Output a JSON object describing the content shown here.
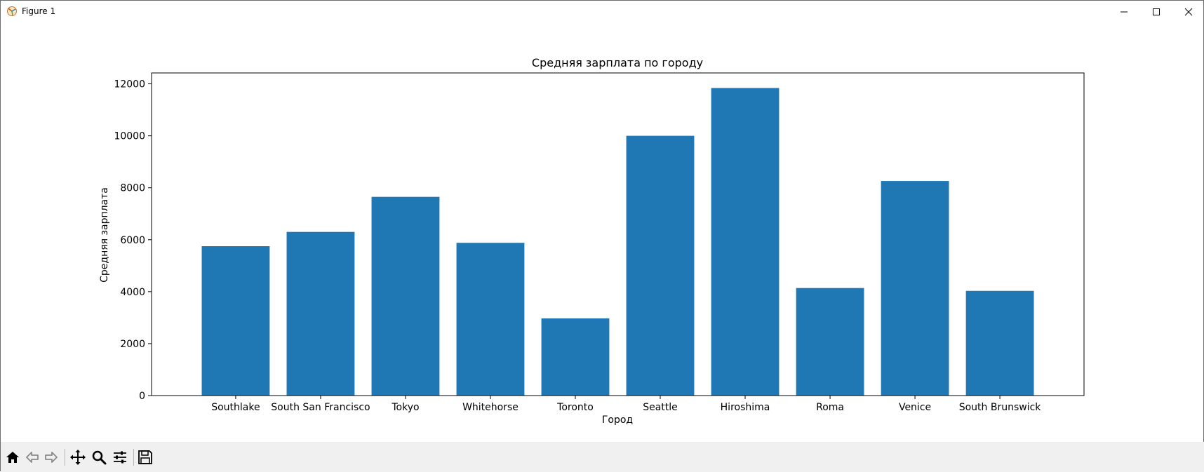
{
  "window": {
    "title": "Figure 1",
    "app_icon": "matplotlib-icon",
    "controls": [
      "minimize-icon",
      "maximize-icon",
      "close-icon"
    ]
  },
  "toolbar": {
    "buttons": [
      "home-icon",
      "back-icon",
      "forward-icon",
      "pan-icon",
      "zoom-icon",
      "configure-subplots-icon",
      "save-icon"
    ]
  },
  "chart_data": {
    "type": "bar",
    "title": "Средняя зарплата по городу",
    "xlabel": "Город",
    "ylabel": "Средняя зарплата",
    "categories": [
      "Southlake",
      "South San Francisco",
      "Tokyo",
      "Whitehorse",
      "Toronto",
      "Seattle",
      "Hiroshima",
      "Roma",
      "Venice",
      "South Brunswick"
    ],
    "values": [
      5750,
      6300,
      7650,
      5880,
      2970,
      10000,
      11840,
      4140,
      8260,
      4030
    ],
    "ylim": [
      0,
      12420
    ],
    "yticks": [
      0,
      2000,
      4000,
      6000,
      8000,
      10000,
      12000
    ],
    "ytick_labels": [
      "0",
      "2000",
      "4000",
      "6000",
      "8000",
      "10000",
      "12000"
    ],
    "bar_color": "#1f77b4",
    "grid": false,
    "legend": "none"
  }
}
